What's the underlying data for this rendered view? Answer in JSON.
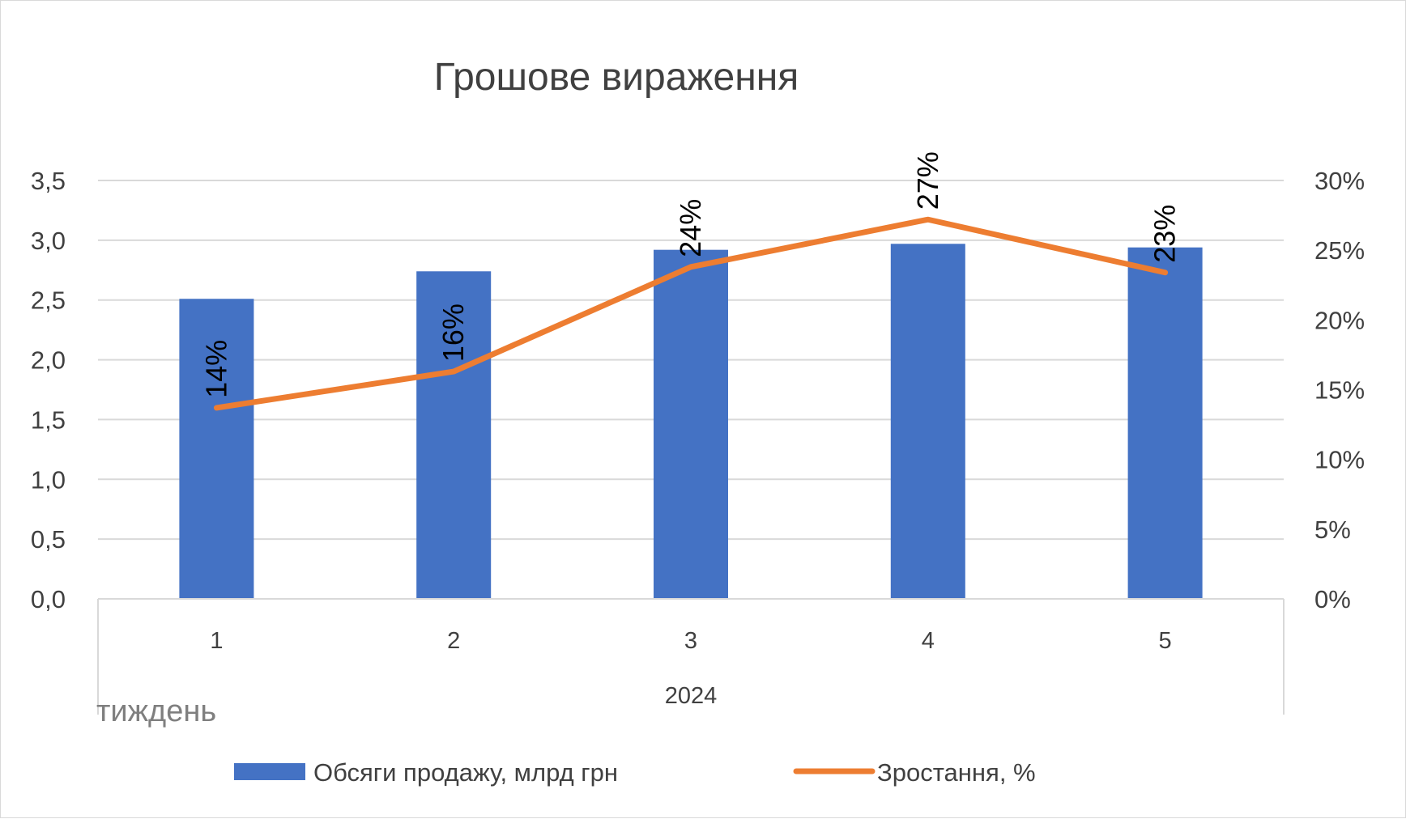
{
  "chart_data": {
    "type": "bar",
    "title": "Грошове вираження",
    "categories": [
      "1",
      "2",
      "3",
      "4",
      "5"
    ],
    "group_label": "2024",
    "xlabel": "тиждень",
    "ylabel": "",
    "ylim": [
      0,
      3.5
    ],
    "y_ticks": [
      "0,0",
      "0,5",
      "1,0",
      "1,5",
      "2,0",
      "2,5",
      "3,0",
      "3,5"
    ],
    "y2lim": [
      0,
      0.3
    ],
    "y2_ticks": [
      "0%",
      "5%",
      "10%",
      "15%",
      "20%",
      "25%",
      "30%"
    ],
    "grid": true,
    "legend_position": "bottom",
    "series": [
      {
        "name": "Обсяги продажу, млрд грн",
        "type": "bar",
        "axis": "left",
        "color": "#4472c4",
        "values": [
          2.51,
          2.74,
          2.92,
          2.97,
          2.94
        ]
      },
      {
        "name": "Зростання, %",
        "type": "line",
        "axis": "right",
        "color": "#ed7d31",
        "values": [
          0.137,
          0.163,
          0.238,
          0.272,
          0.234
        ],
        "data_labels": [
          "14%",
          "16%",
          "24%",
          "27%",
          "23%"
        ]
      }
    ]
  }
}
